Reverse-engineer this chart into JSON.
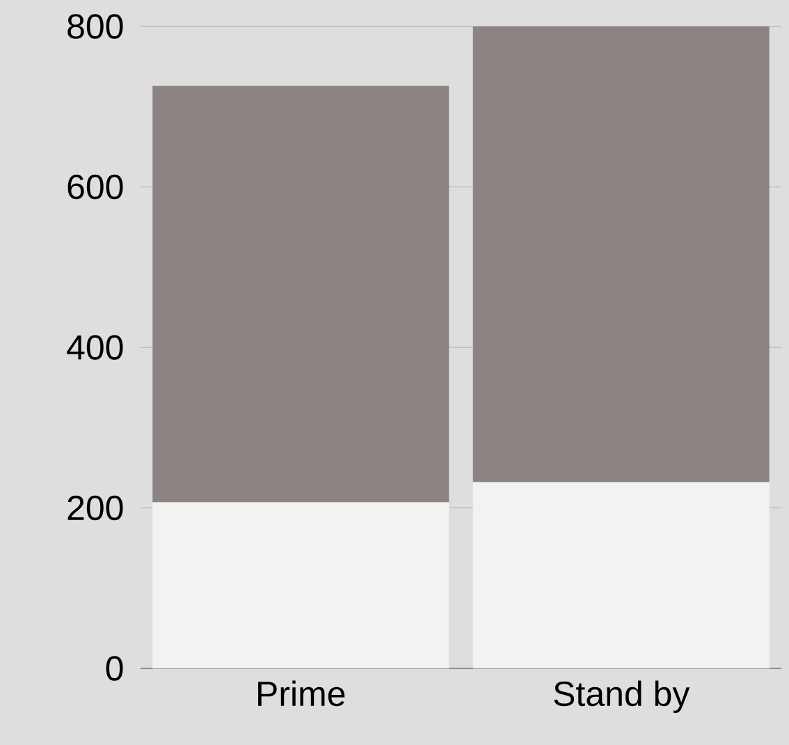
{
  "chart_data": {
    "type": "bar",
    "stacked": true,
    "categories": [
      "Prime",
      "Stand by"
    ],
    "series": [
      {
        "color": "#f2f2f1",
        "values": [
          207,
          232
        ]
      },
      {
        "color": "#8c8482",
        "values": [
          519,
          568
        ]
      }
    ],
    "ylim": [
      0,
      800
    ],
    "yticks": [
      0,
      200,
      400,
      600,
      800
    ],
    "grid": "y"
  }
}
